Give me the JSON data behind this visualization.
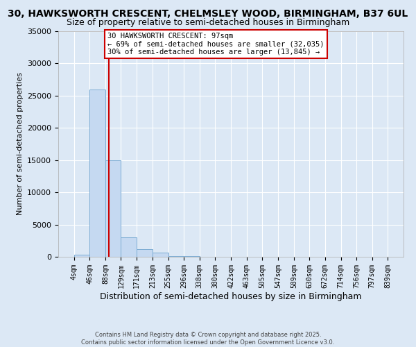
{
  "title1": "30, HAWKSWORTH CRESCENT, CHELMSLEY WOOD, BIRMINGHAM, B37 6UL",
  "title2": "Size of property relative to semi-detached houses in Birmingham",
  "xlabel": "Distribution of semi-detached houses by size in Birmingham",
  "ylabel": "Number of semi-detached properties",
  "footer1": "Contains HM Land Registry data © Crown copyright and database right 2025.",
  "footer2": "Contains public sector information licensed under the Open Government Licence v3.0.",
  "bin_edges": [
    4,
    46,
    88,
    129,
    171,
    213,
    255,
    296,
    338,
    380,
    422,
    463,
    505,
    547,
    589,
    630,
    672,
    714,
    756,
    797,
    839
  ],
  "bar_heights": [
    350,
    26000,
    15000,
    3000,
    1200,
    600,
    150,
    60,
    20,
    10,
    5,
    3,
    2,
    1,
    1,
    0,
    0,
    0,
    0,
    0
  ],
  "bar_color": "#c5d9f1",
  "bar_edgecolor": "#7dadd4",
  "property_size": 97,
  "red_line_color": "#cc0000",
  "annotation_text": "30 HAWKSWORTH CRESCENT: 97sqm\n← 69% of semi-detached houses are smaller (32,035)\n30% of semi-detached houses are larger (13,845) →",
  "annotation_box_color": "#ffffff",
  "annotation_box_edgecolor": "#cc0000",
  "ylim": [
    0,
    35000
  ],
  "yticks": [
    0,
    5000,
    10000,
    15000,
    20000,
    25000,
    30000,
    35000
  ],
  "background_color": "#dce8f5",
  "grid_color": "#ffffff",
  "title1_fontsize": 10,
  "title2_fontsize": 9
}
